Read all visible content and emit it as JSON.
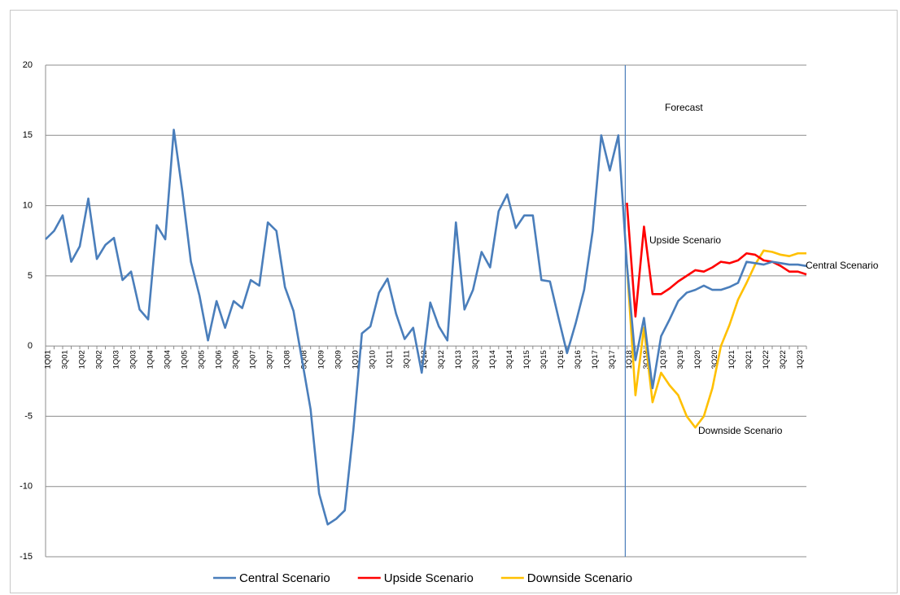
{
  "chart_data": {
    "type": "line",
    "categories": [
      "1Q01",
      null,
      "3Q01",
      null,
      "1Q02",
      null,
      "3Q02",
      null,
      "1Q03",
      null,
      "3Q03",
      null,
      "1Q04",
      null,
      "3Q04",
      null,
      "1Q05",
      null,
      "3Q05",
      null,
      "1Q06",
      null,
      "3Q06",
      null,
      "1Q07",
      null,
      "3Q07",
      null,
      "1Q08",
      null,
      "3Q08",
      null,
      "1Q09",
      null,
      "3Q09",
      null,
      "1Q10",
      null,
      "3Q10",
      null,
      "1Q11",
      null,
      "3Q11",
      null,
      "1Q12",
      null,
      "3Q12",
      null,
      "1Q13",
      null,
      "3Q13",
      null,
      "1Q14",
      null,
      "3Q14",
      null,
      "1Q15",
      null,
      "3Q15",
      null,
      "1Q16",
      null,
      "3Q16",
      null,
      "1Q17",
      null,
      "3Q17",
      null,
      "1Q18",
      null,
      "3Q18",
      null,
      "1Q19",
      null,
      "3Q19",
      null,
      "1Q20",
      null,
      "3Q20",
      null,
      "1Q21",
      null,
      "3Q21",
      null,
      "1Q22",
      null,
      "3Q22",
      null,
      "1Q23",
      null
    ],
    "series": [
      {
        "name": "Central Scenario",
        "color": "#4a7ebb",
        "values": [
          7.6,
          8.2,
          9.3,
          6.0,
          7.1,
          10.5,
          6.2,
          7.2,
          7.7,
          4.7,
          5.3,
          2.6,
          1.9,
          8.6,
          7.6,
          15.4,
          11.0,
          6.0,
          3.6,
          0.4,
          3.2,
          1.3,
          3.2,
          2.7,
          4.7,
          4.3,
          8.8,
          8.2,
          4.2,
          2.5,
          -1.0,
          -4.5,
          -10.5,
          -12.7,
          -12.3,
          -11.7,
          -6.0,
          0.9,
          1.4,
          3.8,
          4.8,
          2.3,
          0.5,
          1.3,
          -1.9,
          3.1,
          1.4,
          0.4,
          8.8,
          2.6,
          4.0,
          6.7,
          5.6,
          9.6,
          10.8,
          8.4,
          9.3,
          9.3,
          4.7,
          4.6,
          2.0,
          -0.5,
          1.6,
          4.0,
          8.2,
          15.0,
          12.5,
          15.0,
          5.8,
          -1.0,
          2.0,
          -3.0,
          0.7,
          1.9,
          3.2,
          3.8,
          4.0,
          4.3,
          4.0,
          4.0,
          4.2,
          4.5,
          6.0,
          5.9,
          5.8,
          6.0,
          5.9,
          5.8,
          5.8,
          5.7
        ]
      },
      {
        "name": "Upside Scenario",
        "color": "#ff0000",
        "values": [
          null,
          null,
          null,
          null,
          null,
          null,
          null,
          null,
          null,
          null,
          null,
          null,
          null,
          null,
          null,
          null,
          null,
          null,
          null,
          null,
          null,
          null,
          null,
          null,
          null,
          null,
          null,
          null,
          null,
          null,
          null,
          null,
          null,
          null,
          null,
          null,
          null,
          null,
          null,
          null,
          null,
          null,
          null,
          null,
          null,
          null,
          null,
          null,
          null,
          null,
          null,
          null,
          null,
          null,
          null,
          null,
          null,
          null,
          null,
          null,
          null,
          null,
          null,
          null,
          null,
          null,
          null,
          null,
          10.2,
          2.1,
          8.5,
          3.7,
          3.7,
          4.1,
          4.6,
          5.0,
          5.4,
          5.3,
          5.6,
          6.0,
          5.9,
          6.1,
          6.6,
          6.5,
          6.1,
          6.0,
          5.7,
          5.3,
          5.3,
          5.1
        ]
      },
      {
        "name": "Downside Scenario",
        "color": "#ffc000",
        "values": [
          null,
          null,
          null,
          null,
          null,
          null,
          null,
          null,
          null,
          null,
          null,
          null,
          null,
          null,
          null,
          null,
          null,
          null,
          null,
          null,
          null,
          null,
          null,
          null,
          null,
          null,
          null,
          null,
          null,
          null,
          null,
          null,
          null,
          null,
          null,
          null,
          null,
          null,
          null,
          null,
          null,
          null,
          null,
          null,
          null,
          null,
          null,
          null,
          null,
          null,
          null,
          null,
          null,
          null,
          null,
          null,
          null,
          null,
          null,
          null,
          null,
          null,
          null,
          null,
          null,
          null,
          null,
          null,
          5.8,
          -3.5,
          1.3,
          -4.0,
          -1.9,
          -2.8,
          -3.5,
          -5.0,
          -5.8,
          -5.0,
          -3.0,
          0.0,
          1.5,
          3.3,
          4.5,
          5.8,
          6.8,
          6.7,
          6.5,
          6.4,
          6.6,
          6.6
        ]
      }
    ],
    "ylim": [
      -15,
      20
    ],
    "yticks": [
      -15,
      -10,
      -5,
      0,
      5,
      10,
      15,
      20
    ],
    "grid": true,
    "annotations": [
      "Forecast",
      "Upside Scenario",
      "Central Scenario",
      "Downside Scenario"
    ],
    "legend": "bottom"
  }
}
